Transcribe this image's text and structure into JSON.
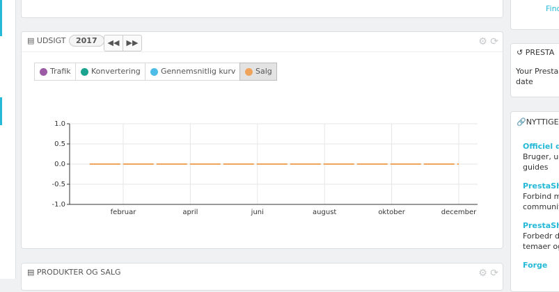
{
  "top_panel": {
    "link": "Find"
  },
  "overview": {
    "title": "UDSIGT",
    "year": "2017",
    "tabs": [
      {
        "name": "Trafik",
        "color": "#9c5ca5"
      },
      {
        "name": "Konvertering",
        "color": "#1ba38f"
      },
      {
        "name": "Gennemsnitlig kurv",
        "color": "#4dbde8"
      }
    ]
  },
  "chart_data": {
    "type": "line",
    "categories": [
      null,
      "februar",
      null,
      "april",
      null,
      "juni",
      null,
      "august",
      null,
      "oktober",
      null,
      "december"
    ],
    "series": [
      {
        "name": "Salg",
        "color": "#f0a35a",
        "values": [
          0,
          0,
          0,
          0,
          0,
          0,
          0,
          0,
          0,
          0,
          0,
          0
        ]
      }
    ],
    "ylim": [
      -1,
      1
    ],
    "yticks": [
      {
        "value": -1,
        "label": "-1.0"
      },
      -0.5,
      {
        "value": 0,
        "label": "0.0"
      },
      0.5,
      {
        "value": 1,
        "label": "1.0"
      }
    ],
    "grid": true
  },
  "products_panel": {
    "title": "PRODUKTER OG SALG"
  },
  "sidebar": {
    "news": {
      "title": "PRESTA",
      "lines": [
        "Your PrestaS",
        "date"
      ]
    },
    "links": {
      "title": "NYTTIGE L",
      "items": [
        {
          "title": "Officiel do",
          "lines": [
            "Bruger, ud",
            "guides"
          ]
        },
        {
          "title": "PrestaSho",
          "lines": [
            "Forbind m",
            "communit"
          ]
        },
        {
          "title": "PrestaSho",
          "lines": [
            "Forbedr di",
            "temaer og"
          ]
        },
        {
          "title": "Forge",
          "lines": []
        }
      ]
    }
  }
}
